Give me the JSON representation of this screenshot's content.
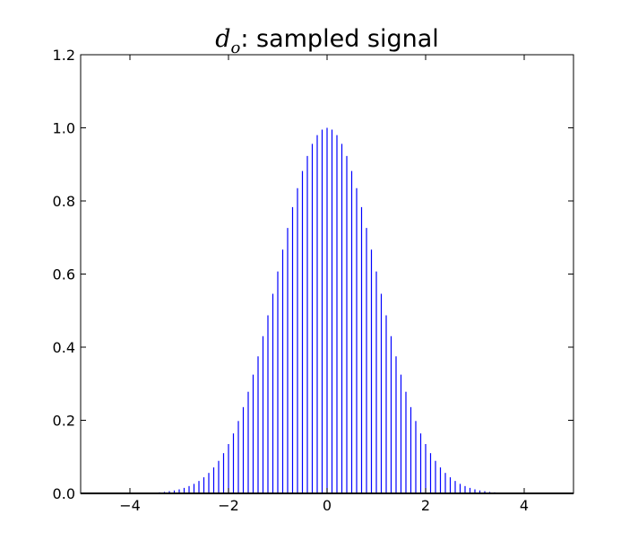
{
  "chart_data": {
    "type": "bar",
    "title": {
      "symbol": "d",
      "subscript": "o",
      "text": ": sampled signal"
    },
    "xlabel": "",
    "ylabel": "",
    "xlim": [
      -5,
      5
    ],
    "ylim": [
      0,
      1.2
    ],
    "x_ticks": [
      -4,
      -2,
      0,
      2,
      4
    ],
    "x_tick_labels": [
      "−4",
      "−2",
      "0",
      "2",
      "4"
    ],
    "y_ticks": [
      0.0,
      0.2,
      0.4,
      0.6,
      0.8,
      1.0,
      1.2
    ],
    "y_tick_labels": [
      "0.0",
      "0.2",
      "0.4",
      "0.6",
      "0.8",
      "1.0",
      "1.2"
    ],
    "grid": false,
    "legend": "none",
    "series": [
      {
        "color": "#0000ff",
        "style": "stem",
        "x": [
          -5.0,
          -4.9,
          -4.8,
          -4.7,
          -4.6,
          -4.5,
          -4.4,
          -4.3,
          -4.2,
          -4.1,
          -4.0,
          -3.9,
          -3.8,
          -3.7,
          -3.6,
          -3.5,
          -3.4,
          -3.3,
          -3.2,
          -3.1,
          -3.0,
          -2.9,
          -2.8,
          -2.7,
          -2.6,
          -2.5,
          -2.4,
          -2.3,
          -2.2,
          -2.1,
          -2.0,
          -1.9,
          -1.8,
          -1.7,
          -1.6,
          -1.5,
          -1.4,
          -1.3,
          -1.2,
          -1.1,
          -1.0,
          -0.9,
          -0.8,
          -0.7,
          -0.6,
          -0.5,
          -0.4,
          -0.3,
          -0.2,
          -0.1,
          0.0,
          0.1,
          0.2,
          0.3,
          0.4,
          0.5,
          0.6,
          0.7,
          0.8,
          0.9,
          1.0,
          1.1,
          1.2,
          1.3,
          1.4,
          1.5,
          1.6,
          1.7,
          1.8,
          1.9,
          2.0,
          2.1,
          2.2,
          2.3,
          2.4,
          2.5,
          2.6,
          2.7,
          2.8,
          2.9,
          3.0,
          3.1,
          3.2,
          3.3,
          3.4,
          3.5,
          3.6,
          3.7,
          3.8,
          3.9,
          4.0,
          4.1,
          4.2,
          4.3,
          4.4,
          4.5,
          4.6,
          4.7,
          4.8,
          4.9,
          5.0
        ],
        "values": [
          0.0,
          0.0,
          0.0,
          0.0,
          0.0,
          0.0,
          0.0,
          0.0,
          0.0,
          0.0,
          0.0,
          0.0,
          0.0,
          0.0,
          0.0,
          0.0,
          0.003,
          0.004,
          0.006,
          0.008,
          0.011,
          0.015,
          0.02,
          0.026,
          0.034,
          0.044,
          0.056,
          0.071,
          0.089,
          0.11,
          0.135,
          0.164,
          0.198,
          0.236,
          0.278,
          0.325,
          0.375,
          0.43,
          0.487,
          0.546,
          0.607,
          0.667,
          0.726,
          0.783,
          0.835,
          0.882,
          0.923,
          0.956,
          0.98,
          0.995,
          1.0,
          0.995,
          0.98,
          0.956,
          0.923,
          0.882,
          0.835,
          0.783,
          0.726,
          0.667,
          0.607,
          0.546,
          0.487,
          0.43,
          0.375,
          0.325,
          0.278,
          0.236,
          0.198,
          0.164,
          0.135,
          0.11,
          0.089,
          0.071,
          0.056,
          0.044,
          0.034,
          0.026,
          0.02,
          0.015,
          0.011,
          0.008,
          0.006,
          0.004,
          0.003,
          0.0,
          0.0,
          0.0,
          0.0,
          0.0,
          0.0,
          0.0,
          0.0,
          0.0,
          0.0,
          0.0,
          0.0,
          0.0,
          0.0,
          0.0,
          0.0
        ]
      }
    ]
  }
}
